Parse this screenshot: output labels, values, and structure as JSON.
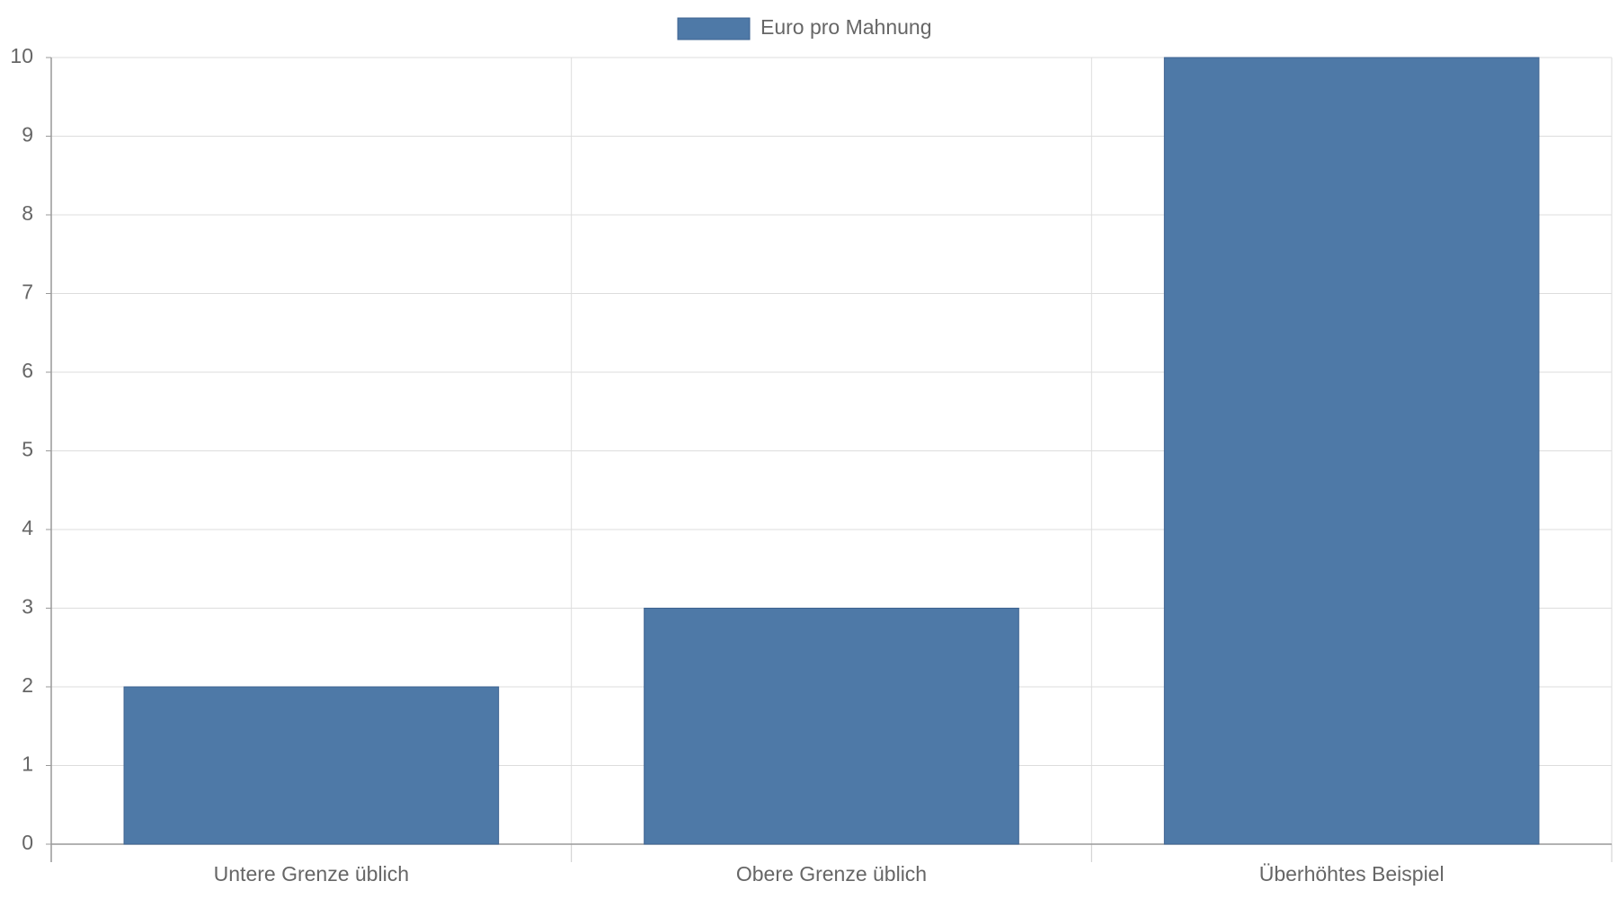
{
  "chart_data": {
    "type": "bar",
    "categories": [
      "Untere Grenze üblich",
      "Obere Grenze üblich",
      "Überhöhtes Beispiel"
    ],
    "series": [
      {
        "name": "Euro pro Mahnung",
        "color": "#4e79a7",
        "values": [
          2,
          3,
          10
        ]
      }
    ],
    "ylim": [
      0,
      10
    ],
    "yticks": [
      0,
      1,
      2,
      3,
      4,
      5,
      6,
      7,
      8,
      9,
      10
    ],
    "grid": true,
    "legend": "top"
  }
}
